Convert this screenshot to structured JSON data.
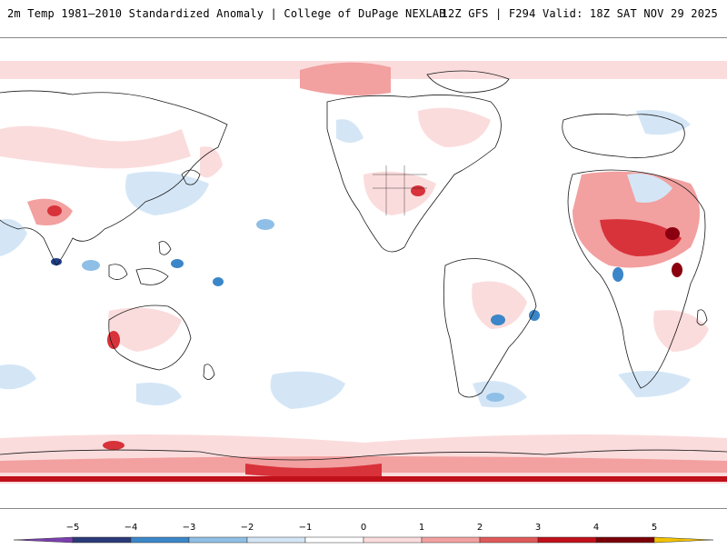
{
  "header": {
    "title_left": "2m Temp 1981–2010 Standardized Anomaly | College of DuPage NEXLAB",
    "title_right": "12Z GFS | F294 Valid: 18Z SAT NOV 29 2025"
  },
  "legend": {
    "labels": [
      "−5",
      "−4",
      "−3",
      "−2",
      "−1",
      "0",
      "1",
      "2",
      "3",
      "4",
      "5"
    ],
    "colors": [
      "#7b3fb0",
      "#2b3a78",
      "#3a86c8",
      "#8fbfe6",
      "#d4e6f6",
      "#ffffff",
      "#fbdcdc",
      "#f2a0a0",
      "#e05a5a",
      "#c0101a",
      "#7a0008",
      "#f2c200"
    ]
  },
  "colors": {
    "coast": "#1a1a1a",
    "warm_light": "#fbdcdc",
    "warm_mid": "#f2a0a0",
    "warm_strong": "#d8323a",
    "warm_extreme": "#8a0010",
    "cool_light": "#d4e6f6",
    "cool_mid": "#8fbfe6",
    "cool_strong": "#3a86c8",
    "cool_extreme": "#1f3f8a"
  }
}
